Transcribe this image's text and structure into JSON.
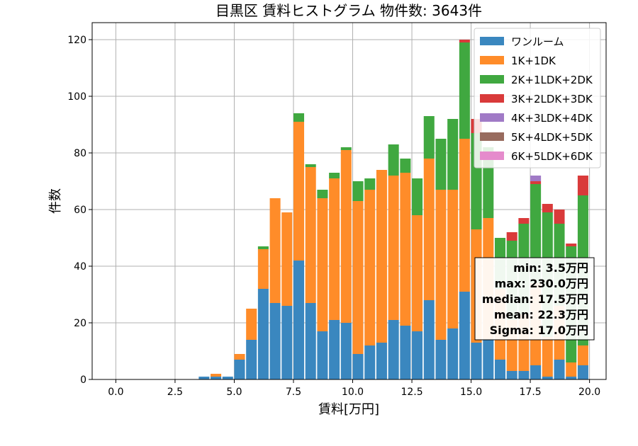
{
  "chart_data": {
    "type": "bar",
    "stacked": true,
    "title": "目黒区 賃料ヒストグラム 物件数: 3643件",
    "xlabel": "賃料[万円]",
    "ylabel": "件数",
    "xlim": [
      -1,
      20.7
    ],
    "ylim": [
      0,
      126
    ],
    "xticks": [
      "0.0",
      "2.5",
      "5.0",
      "7.5",
      "10.0",
      "12.5",
      "15.0",
      "17.5",
      "20.0"
    ],
    "xtick_values": [
      0,
      2.5,
      5,
      7.5,
      10,
      12.5,
      15,
      17.5,
      20
    ],
    "yticks": [
      "0",
      "20",
      "40",
      "60",
      "80",
      "100",
      "120"
    ],
    "ytick_values": [
      0,
      20,
      40,
      60,
      80,
      100,
      120
    ],
    "grid": true,
    "legend_position": "top-right",
    "bin_width": 0.5,
    "x": [
      3.5,
      4.0,
      4.5,
      5.0,
      5.5,
      6.0,
      6.5,
      7.0,
      7.5,
      8.0,
      8.5,
      9.0,
      9.5,
      10.0,
      10.5,
      11.0,
      11.5,
      12.0,
      12.5,
      13.0,
      13.5,
      14.0,
      14.5,
      15.0,
      15.5,
      16.0,
      16.5,
      17.0,
      17.5,
      18.0,
      18.5,
      19.0,
      19.5
    ],
    "series": [
      {
        "name": "ワンルーム",
        "color": "#3a87bf",
        "values": [
          1,
          1,
          1,
          7,
          14,
          32,
          27,
          26,
          42,
          27,
          17,
          21,
          20,
          9,
          12,
          13,
          21,
          19,
          17,
          28,
          14,
          18,
          31,
          13,
          14,
          7,
          3,
          3,
          5,
          1,
          7,
          1,
          5
        ]
      },
      {
        "name": "1K+1DK",
        "color": "#ff8c29",
        "values": [
          0,
          1,
          0,
          2,
          11,
          14,
          37,
          33,
          49,
          48,
          47,
          50,
          61,
          54,
          55,
          61,
          51,
          54,
          41,
          50,
          53,
          49,
          54,
          40,
          43,
          25,
          18,
          20,
          29,
          14,
          19,
          5,
          7
        ]
      },
      {
        "name": "2K+1LDK+2DK",
        "color": "#40a840",
        "values": [
          0,
          0,
          0,
          0,
          0,
          1,
          0,
          0,
          3,
          1,
          3,
          2,
          1,
          7,
          4,
          0,
          11,
          5,
          13,
          15,
          18,
          25,
          34,
          34,
          25,
          18,
          28,
          32,
          35,
          44,
          29,
          41,
          53
        ]
      },
      {
        "name": "3K+2LDK+3DK",
        "color": "#d93a3a",
        "values": [
          0,
          0,
          0,
          0,
          0,
          0,
          0,
          0,
          0,
          0,
          0,
          0,
          0,
          0,
          0,
          0,
          0,
          0,
          0,
          0,
          0,
          0,
          1,
          5,
          0,
          0,
          3,
          2,
          1,
          3,
          5,
          1,
          7
        ]
      },
      {
        "name": "4K+3LDK+4DK",
        "color": "#a07ac6",
        "values": [
          0,
          0,
          0,
          0,
          0,
          0,
          0,
          0,
          0,
          0,
          0,
          0,
          0,
          0,
          0,
          0,
          0,
          0,
          0,
          0,
          0,
          0,
          0,
          0,
          0,
          0,
          0,
          0,
          2,
          0,
          0,
          0,
          0
        ]
      },
      {
        "name": "5K+4LDK+5DK",
        "color": "#986b5e",
        "values": [
          0,
          0,
          0,
          0,
          0,
          0,
          0,
          0,
          0,
          0,
          0,
          0,
          0,
          0,
          0,
          0,
          0,
          0,
          0,
          0,
          0,
          0,
          0,
          0,
          0,
          0,
          0,
          0,
          0,
          0,
          0,
          0,
          0
        ]
      },
      {
        "name": "6K+5LDK+6DK",
        "color": "#e58bcc",
        "values": [
          0,
          0,
          0,
          0,
          0,
          0,
          0,
          0,
          0,
          0,
          0,
          0,
          0,
          0,
          0,
          0,
          0,
          0,
          0,
          0,
          0,
          0,
          0,
          0,
          0,
          0,
          0,
          0,
          0,
          0,
          0,
          0,
          0
        ]
      }
    ],
    "annotations": {
      "stats_lines": [
        "min: 3.5万円",
        "max: 230.0万円",
        "median: 17.5万円",
        "mean: 22.3万円",
        "Sigma: 17.0万円"
      ]
    }
  }
}
